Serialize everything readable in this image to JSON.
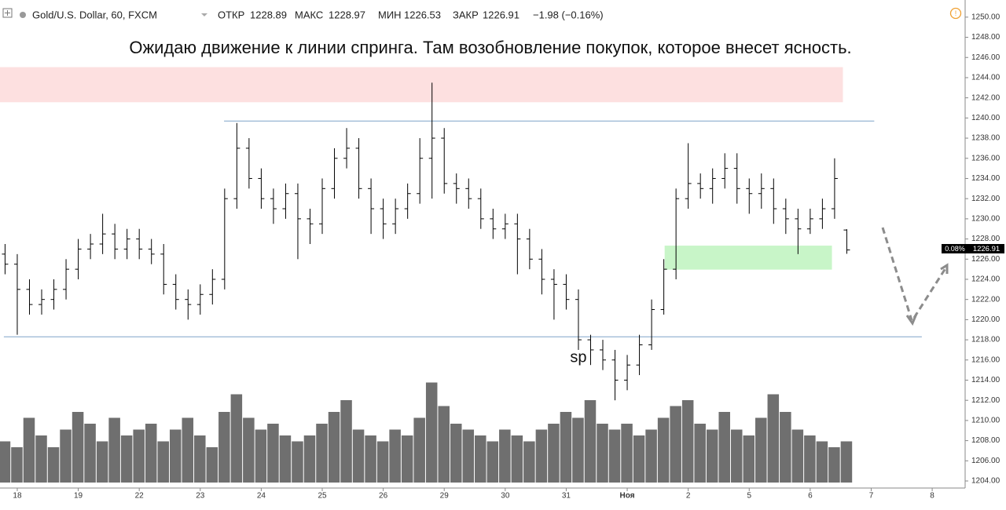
{
  "chart_data": {
    "type": "ohlc",
    "header": {
      "symbol": "Gold/U.S. Dollar, 60, FXCM",
      "open_label": "ОТКР",
      "open": "1228.89",
      "high_label": "МАКС",
      "high": "1228.97",
      "low_label": "МИН",
      "low": "1226.53",
      "close_label": "ЗАКР",
      "close": "1226.91",
      "change": "−1.98 (−0.16%)",
      "tag_change": "0.08%"
    },
    "annotation": "Ожидаю движение к линии спринга. Там возобновление покупок, которое внесет ясность.",
    "point_label": {
      "text": "sp",
      "x": 9.2,
      "y": 1216.2
    },
    "xlim": [
      -0.283,
      15.54
    ],
    "xticks": [
      {
        "value": 0,
        "label": "18"
      },
      {
        "value": 1,
        "label": "19"
      },
      {
        "value": 2,
        "label": "22"
      },
      {
        "value": 3,
        "label": "23"
      },
      {
        "value": 4,
        "label": "24"
      },
      {
        "value": 5,
        "label": "25"
      },
      {
        "value": 6,
        "label": "26"
      },
      {
        "value": 7,
        "label": "29"
      },
      {
        "value": 8,
        "label": "30"
      },
      {
        "value": 9,
        "label": "31"
      },
      {
        "value": 10,
        "label": "Ноя"
      },
      {
        "value": 11,
        "label": "2"
      },
      {
        "value": 12,
        "label": "5"
      },
      {
        "value": 13,
        "label": "6"
      },
      {
        "value": 14,
        "label": "7"
      },
      {
        "value": 15,
        "label": "8"
      }
    ],
    "ylim": [
      1203.3,
      1251.7
    ],
    "yticks": [
      {
        "value": 1204,
        "label": "1204.00"
      },
      {
        "value": 1206,
        "label": "1206.00"
      },
      {
        "value": 1208,
        "label": "1208.00"
      },
      {
        "value": 1210,
        "label": "1210.00"
      },
      {
        "value": 1212,
        "label": "1212.00"
      },
      {
        "value": 1214,
        "label": "1214.00"
      },
      {
        "value": 1216,
        "label": "1216.00"
      },
      {
        "value": 1218,
        "label": "1218.00"
      },
      {
        "value": 1220,
        "label": "1220.00"
      },
      {
        "value": 1222,
        "label": "1222.00"
      },
      {
        "value": 1224,
        "label": "1224.00"
      },
      {
        "value": 1226,
        "label": "1226.00"
      },
      {
        "value": 1228,
        "label": "1228.00"
      },
      {
        "value": 1230,
        "label": "1230.00"
      },
      {
        "value": 1232,
        "label": "1232.00"
      },
      {
        "value": 1234,
        "label": "1234.00"
      },
      {
        "value": 1236,
        "label": "1236.00"
      },
      {
        "value": 1238,
        "label": "1238.00"
      },
      {
        "value": 1240,
        "label": "1240.00"
      },
      {
        "value": 1242,
        "label": "1242.00"
      },
      {
        "value": 1244,
        "label": "1244.00"
      },
      {
        "value": 1246,
        "label": "1246.00"
      },
      {
        "value": 1248,
        "label": "1248.00"
      },
      {
        "value": 1250,
        "label": "1250.00"
      }
    ],
    "x0": -0.2,
    "x_step": 0.2,
    "open": [
      1226.5,
      1225.5,
      1223,
      1221.5,
      1222,
      1223,
      1225,
      1227,
      1227.5,
      1228.5,
      1227,
      1228,
      1227,
      1226.5,
      1223.5,
      1222,
      1221.5,
      1222.5,
      1224,
      1232,
      1237,
      1234,
      1232,
      1231,
      1232.5,
      1230,
      1229.5,
      1233,
      1236,
      1237,
      1233,
      1231,
      1229.5,
      1231,
      1232.5,
      1236,
      1238,
      1233.5,
      1233,
      1232,
      1230,
      1229,
      1229.5,
      1228,
      1226,
      1224,
      1223.5,
      1222,
      1218,
      1217,
      1216,
      1214,
      1215.5,
      1217.5,
      1221,
      1225,
      1232,
      1233.5,
      1233,
      1234,
      1235,
      1233,
      1232.5,
      1233,
      1231,
      1230,
      1229,
      1230,
      1231,
      1228.89
    ],
    "high": [
      1227.5,
      1226.5,
      1224,
      1223,
      1224,
      1226,
      1228,
      1228.5,
      1230.5,
      1229.5,
      1229,
      1229,
      1228,
      1227.5,
      1224.5,
      1223,
      1223.5,
      1225,
      1233,
      1239.5,
      1238,
      1235,
      1233,
      1233.5,
      1233.5,
      1231,
      1234,
      1237,
      1239,
      1238,
      1234,
      1232,
      1232,
      1233.5,
      1238,
      1243.5,
      1239,
      1234.5,
      1234,
      1233,
      1231,
      1230.5,
      1230.5,
      1229,
      1227,
      1225,
      1224.5,
      1223,
      1218.5,
      1218,
      1217,
      1216.5,
      1218.5,
      1222,
      1226,
      1233,
      1237.5,
      1234.5,
      1235,
      1236.5,
      1236.5,
      1234,
      1234.5,
      1234,
      1232,
      1231,
      1231,
      1232,
      1236,
      1228.97
    ],
    "low": [
      1224.5,
      1218.5,
      1220.5,
      1220.5,
      1221,
      1222,
      1224,
      1226,
      1226.5,
      1226,
      1226,
      1226,
      1225.5,
      1222.5,
      1221,
      1220,
      1220.5,
      1221.5,
      1223,
      1231,
      1233,
      1231,
      1229.5,
      1230,
      1226,
      1227.5,
      1228.5,
      1232,
      1235,
      1232,
      1228.5,
      1228,
      1228.5,
      1230,
      1231.5,
      1232,
      1232.5,
      1231.5,
      1231,
      1229,
      1228,
      1228,
      1224.5,
      1225,
      1222.5,
      1220,
      1221,
      1217,
      1215.5,
      1215,
      1212,
      1213,
      1214.5,
      1217,
      1220.5,
      1224,
      1231,
      1232,
      1231.5,
      1233,
      1231.5,
      1230.5,
      1231,
      1229.5,
      1228.5,
      1226.5,
      1228.5,
      1229,
      1230,
      1226.53
    ],
    "close": [
      1225.5,
      1223,
      1221.5,
      1222,
      1223,
      1225,
      1227,
      1227.5,
      1228.5,
      1227,
      1228,
      1227,
      1226.5,
      1223.5,
      1222,
      1221.5,
      1222.5,
      1224,
      1232,
      1237,
      1234,
      1232,
      1231,
      1232.5,
      1230,
      1229.5,
      1233,
      1236,
      1237,
      1233,
      1231,
      1229.5,
      1231,
      1232.5,
      1236,
      1238,
      1233.5,
      1233,
      1232,
      1230,
      1229,
      1229.5,
      1228,
      1226,
      1224,
      1223.5,
      1222,
      1218,
      1217,
      1216,
      1214,
      1215.5,
      1217.5,
      1221,
      1225,
      1232,
      1233.5,
      1233,
      1234,
      1235,
      1233,
      1232.5,
      1233,
      1231,
      1230,
      1229,
      1230,
      1231,
      1234,
      1226.91
    ],
    "volume": [
      35,
      30,
      55,
      40,
      30,
      45,
      60,
      50,
      35,
      55,
      40,
      45,
      50,
      35,
      45,
      55,
      40,
      30,
      60,
      75,
      55,
      45,
      50,
      40,
      35,
      40,
      50,
      60,
      70,
      45,
      40,
      35,
      45,
      40,
      55,
      85,
      65,
      50,
      45,
      40,
      35,
      45,
      40,
      35,
      45,
      50,
      60,
      55,
      70,
      50,
      45,
      50,
      40,
      45,
      55,
      65,
      70,
      50,
      45,
      60,
      45,
      40,
      55,
      75,
      60,
      45,
      40,
      35,
      30,
      35
    ],
    "volume_lim": [
      0,
      100
    ],
    "color": "#000000",
    "volume_color": "#6f6f6f",
    "zones": [
      {
        "y0": 1241.6,
        "y1": 1245,
        "x0": -0.283,
        "x1": 13.53,
        "color": "#fde0e0"
      },
      {
        "y0": 1225,
        "y1": 1227.3,
        "x0": 10.62,
        "x1": 13.35,
        "color": "#c8f5c8"
      }
    ],
    "levels": [
      {
        "y": 1239.7,
        "x0": 3.39,
        "x1": 14.05,
        "color": "#7fa4c8"
      },
      {
        "y": 1218.3,
        "x0": -0.22,
        "x1": 14.83,
        "color": "#7fa4c8"
      }
    ]
  }
}
